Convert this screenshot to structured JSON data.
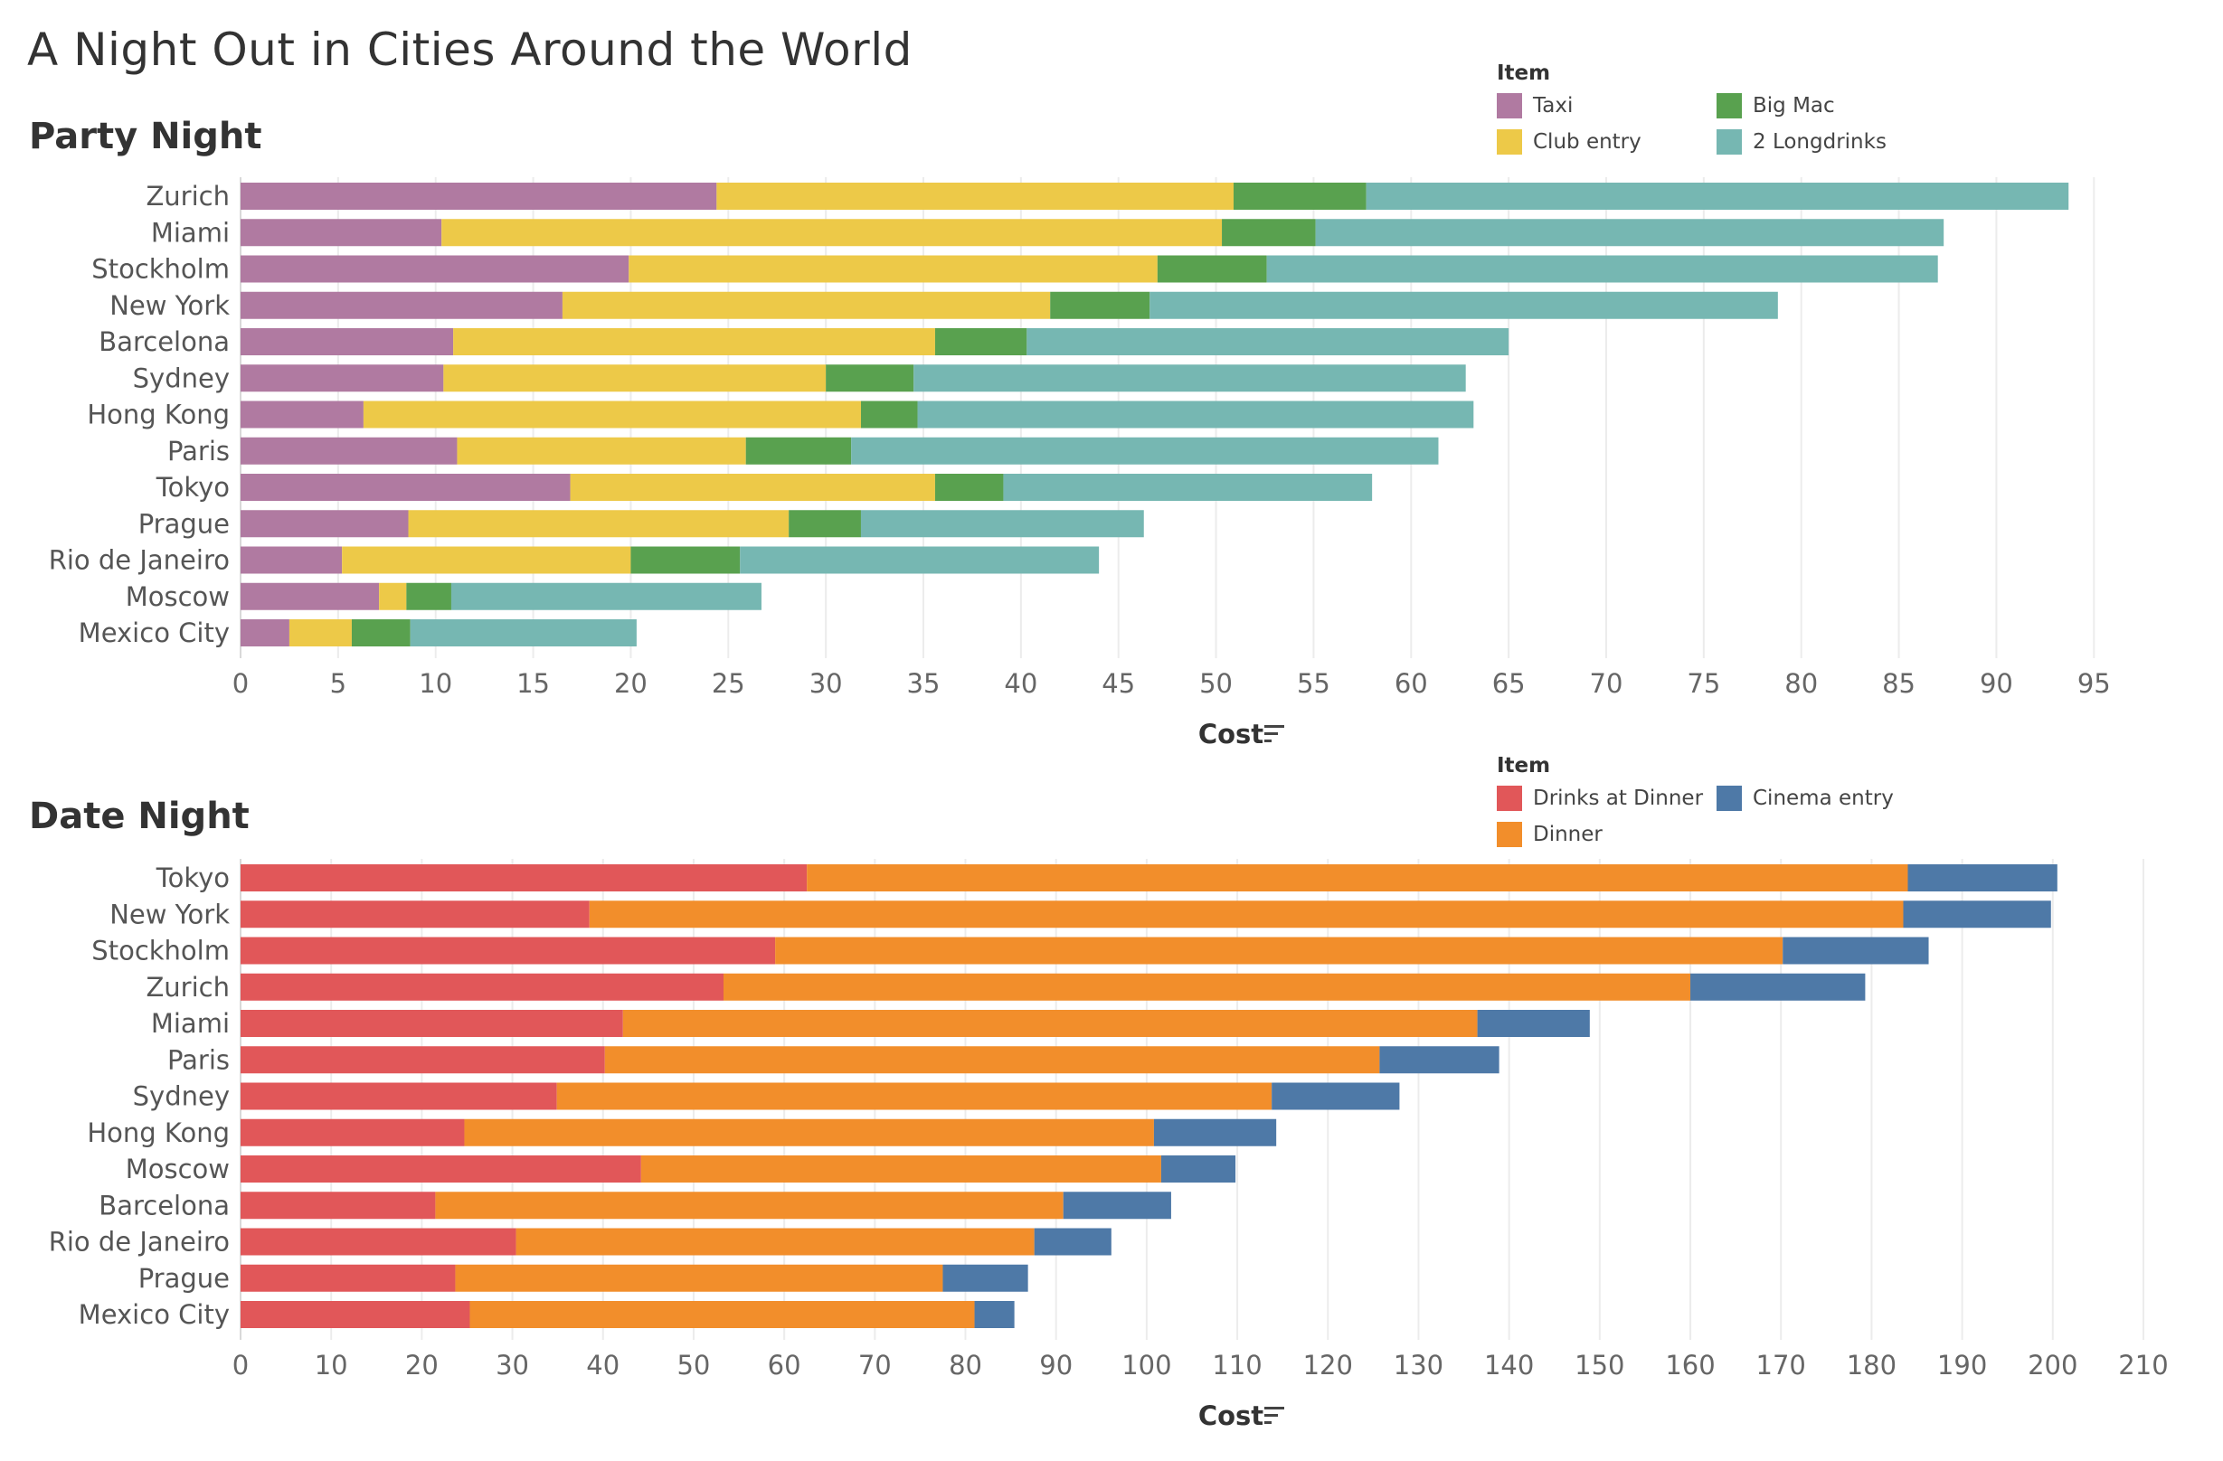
{
  "page": {
    "title": "A Night Out in Cities Around the World"
  },
  "chart_data": [
    {
      "id": "party",
      "type": "bar",
      "orientation": "horizontal",
      "stacked": true,
      "title": "Party Night",
      "xlabel": "Cost",
      "xlim": [
        0,
        98
      ],
      "xticks": [
        0,
        5,
        10,
        15,
        20,
        25,
        30,
        35,
        40,
        45,
        50,
        55,
        60,
        65,
        70,
        75,
        80,
        85,
        90,
        95
      ],
      "legend_title": "Item",
      "legend_position": "top-right",
      "grid": true,
      "categories": [
        "Zurich",
        "Miami",
        "Stockholm",
        "New York",
        "Barcelona",
        "Sydney",
        "Hong Kong",
        "Paris",
        "Tokyo",
        "Prague",
        "Rio de Janeiro",
        "Moscow",
        "Mexico City"
      ],
      "series": [
        {
          "name": "Taxi",
          "color": "#b07aa1",
          "values": [
            24.4,
            10.3,
            19.9,
            16.5,
            10.9,
            10.4,
            6.3,
            11.1,
            16.9,
            8.6,
            5.2,
            7.1,
            2.5
          ]
        },
        {
          "name": "Club entry",
          "color": "#edc948",
          "values": [
            26.5,
            40.0,
            27.1,
            25.0,
            24.7,
            19.6,
            25.5,
            14.8,
            18.7,
            19.5,
            14.8,
            1.4,
            3.2
          ]
        },
        {
          "name": "Big Mac",
          "color": "#59a14f",
          "values": [
            6.8,
            4.8,
            5.6,
            5.1,
            4.7,
            4.5,
            2.9,
            5.4,
            3.5,
            3.7,
            5.6,
            2.3,
            3.0
          ]
        },
        {
          "name": "2 Longdrinks",
          "color": "#76b7b2",
          "values": [
            36.0,
            32.2,
            34.4,
            32.2,
            24.7,
            28.3,
            28.5,
            30.1,
            18.9,
            14.5,
            18.4,
            15.9,
            11.6
          ]
        }
      ]
    },
    {
      "id": "date",
      "type": "bar",
      "orientation": "horizontal",
      "stacked": true,
      "title": "Date Night",
      "xlabel": "Cost",
      "xlim": [
        0,
        211
      ],
      "xticks": [
        0,
        10,
        20,
        30,
        40,
        50,
        60,
        70,
        80,
        90,
        100,
        110,
        120,
        130,
        140,
        150,
        160,
        170,
        180,
        190,
        200,
        210
      ],
      "legend_title": "Item",
      "legend_position": "top-right",
      "grid": true,
      "categories": [
        "Tokyo",
        "New York",
        "Stockholm",
        "Zurich",
        "Miami",
        "Paris",
        "Sydney",
        "Hong Kong",
        "Moscow",
        "Barcelona",
        "Rio de Janeiro",
        "Prague",
        "Mexico City"
      ],
      "series": [
        {
          "name": "Drinks at Dinner",
          "color": "#e15759",
          "values": [
            62.5,
            38.5,
            59.0,
            53.3,
            42.2,
            40.2,
            34.9,
            24.7,
            44.2,
            21.5,
            30.4,
            23.7,
            25.3
          ]
        },
        {
          "name": "Dinner",
          "color": "#f28e2b",
          "values": [
            121.5,
            145.0,
            111.2,
            106.7,
            94.3,
            85.5,
            78.9,
            76.1,
            57.4,
            69.3,
            57.2,
            53.8,
            55.7
          ]
        },
        {
          "name": "Cinema entry",
          "color": "#4e79a7",
          "values": [
            16.5,
            16.3,
            16.1,
            19.3,
            12.4,
            13.2,
            14.1,
            13.5,
            8.2,
            11.9,
            8.5,
            9.4,
            4.4
          ]
        }
      ]
    }
  ],
  "legends": {
    "party": {
      "title": "Item",
      "items": [
        {
          "label": "Taxi",
          "color": "#b07aa1"
        },
        {
          "label": "Big Mac",
          "color": "#59a14f"
        },
        {
          "label": "Club entry",
          "color": "#edc948"
        },
        {
          "label": "2 Longdrinks",
          "color": "#76b7b2"
        }
      ]
    },
    "date": {
      "title": "Item",
      "items": [
        {
          "label": "Drinks at Dinner",
          "color": "#e15759"
        },
        {
          "label": "Cinema entry",
          "color": "#4e79a7"
        },
        {
          "label": "Dinner",
          "color": "#f28e2b"
        }
      ]
    }
  }
}
